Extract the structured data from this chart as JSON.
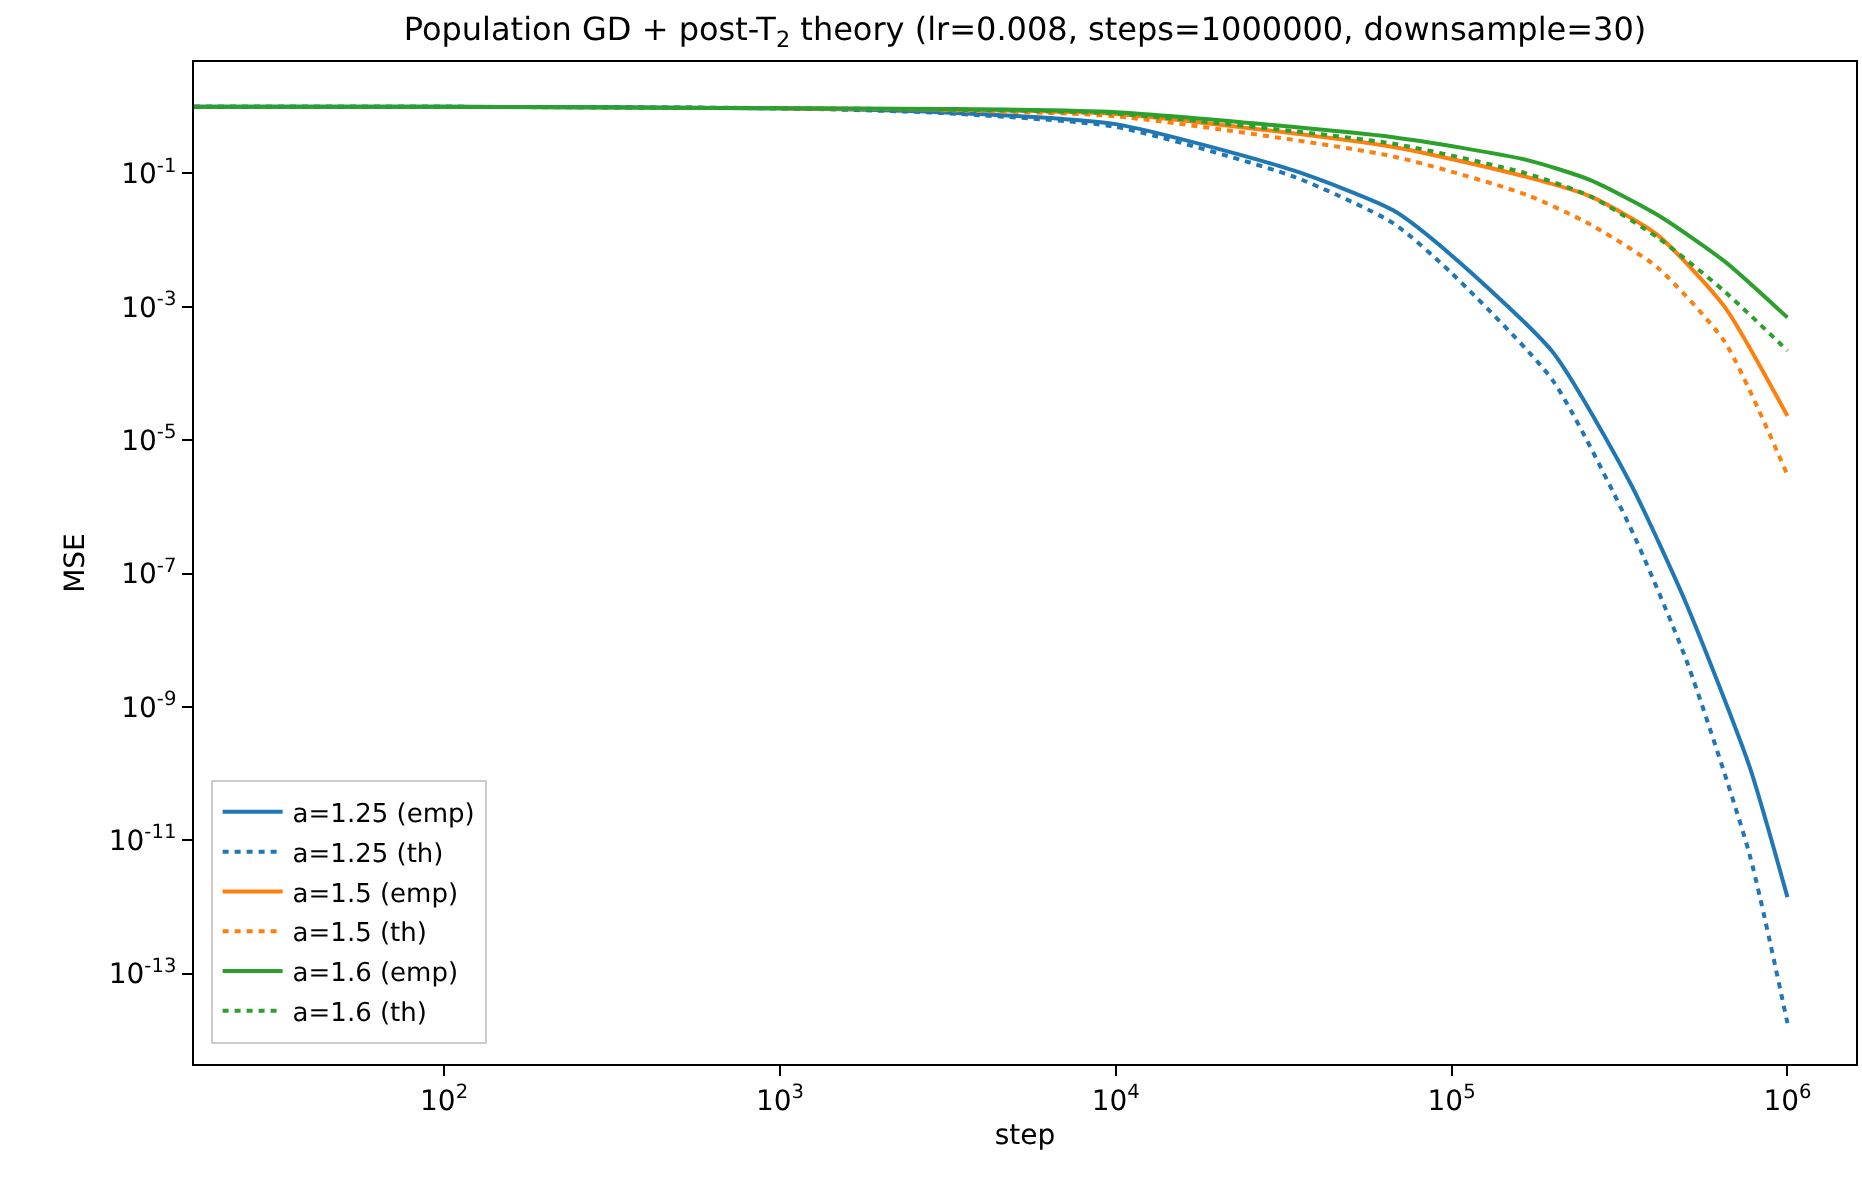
{
  "chart_data": {
    "type": "line",
    "title": "Population GD + post-T$_{2}$ theory (lr=0.008, steps=1000000, downsample=30)",
    "xlabel": "step",
    "ylabel": "MSE",
    "log": "xy",
    "legend": "bottom left",
    "marker": "none",
    "xlim": [
      18,
      1600000
    ],
    "ylim": [
      4.4e-15,
      4.7
    ],
    "xticks": [
      {
        "value": 100,
        "label": "10$^{2}$"
      },
      {
        "value": 1000,
        "label": "10$^{3}$"
      },
      {
        "value": 10000,
        "label": "10$^{4}$"
      },
      {
        "value": 100000,
        "label": "10$^{5}$"
      },
      {
        "value": 1000000,
        "label": "10$^{6}$"
      }
    ],
    "yticks": [
      {
        "value": 0.1,
        "label": "10$^{-1}$"
      },
      {
        "value": 0.001,
        "label": "10$^{-3}$"
      },
      {
        "value": 1e-05,
        "label": "10$^{-5}$"
      },
      {
        "value": 1e-07,
        "label": "10$^{-7}$"
      },
      {
        "value": 1e-09,
        "label": "10$^{-9}$"
      },
      {
        "value": 1e-11,
        "label": "10$^{-11}$"
      },
      {
        "value": 1e-13,
        "label": "10$^{-13}$"
      }
    ],
    "series": [
      {
        "name": "a=1.25 (emp)",
        "color": "#1f77b4",
        "line_style": "solid",
        "x": [
          18,
          100,
          1000,
          3000,
          10000,
          34000,
          67000,
          100000,
          200000,
          340000,
          500000,
          770000,
          1000000
        ],
        "values": [
          1.0,
          1.0,
          0.95,
          0.83,
          0.55,
          0.11,
          0.028,
          0.0059,
          0.00021,
          2.3e-06,
          3.5e-08,
          1.3e-10,
          1.4e-12
        ]
      },
      {
        "name": "a=1.25 (th)",
        "color": "#1f77b4",
        "line_style": "dotted",
        "x": [
          18,
          100,
          1000,
          3000,
          10000,
          34000,
          67000,
          100000,
          200000,
          340000,
          500000,
          770000,
          1000000
        ],
        "values": [
          1.0,
          1.0,
          0.95,
          0.81,
          0.5,
          0.089,
          0.018,
          0.0032,
          7.9e-05,
          5e-07,
          5e-09,
          6.3e-12,
          1.8e-14
        ]
      },
      {
        "name": "a=1.5 (emp)",
        "color": "#ff7f0e",
        "line_style": "solid",
        "x": [
          1000,
          3000,
          10000,
          67000,
          167000,
          260000,
          410000,
          650000,
          1000000
        ],
        "values": [
          0.95,
          0.91,
          0.78,
          0.25,
          0.089,
          0.045,
          0.012,
          0.001,
          2.3e-05
        ]
      },
      {
        "name": "a=1.5 (th)",
        "color": "#ff7f0e",
        "line_style": "dotted",
        "x": [
          3000,
          10000,
          67000,
          167000,
          260000,
          410000,
          650000,
          1000000
        ],
        "values": [
          0.89,
          0.72,
          0.18,
          0.048,
          0.017,
          0.0039,
          0.0003,
          3e-06
        ]
      },
      {
        "name": "a=1.6 (emp)",
        "color": "#2ca02c",
        "line_style": "solid",
        "x": [
          18,
          100,
          1000,
          3000,
          10000,
          67000,
          167000,
          260000,
          410000,
          650000,
          1000000
        ],
        "values": [
          1.0,
          1.0,
          0.95,
          0.93,
          0.83,
          0.35,
          0.16,
          0.079,
          0.024,
          0.0048,
          0.00069
        ]
      },
      {
        "name": "a=1.6 (th)",
        "color": "#2ca02c",
        "line_style": "dotted",
        "x": [
          18,
          100,
          1000,
          3000,
          10000,
          67000,
          167000,
          260000,
          410000,
          650000,
          1000000
        ],
        "values": [
          1.0,
          1.0,
          0.95,
          0.91,
          0.79,
          0.28,
          0.1,
          0.045,
          0.011,
          0.0017,
          0.00022
        ]
      }
    ]
  }
}
